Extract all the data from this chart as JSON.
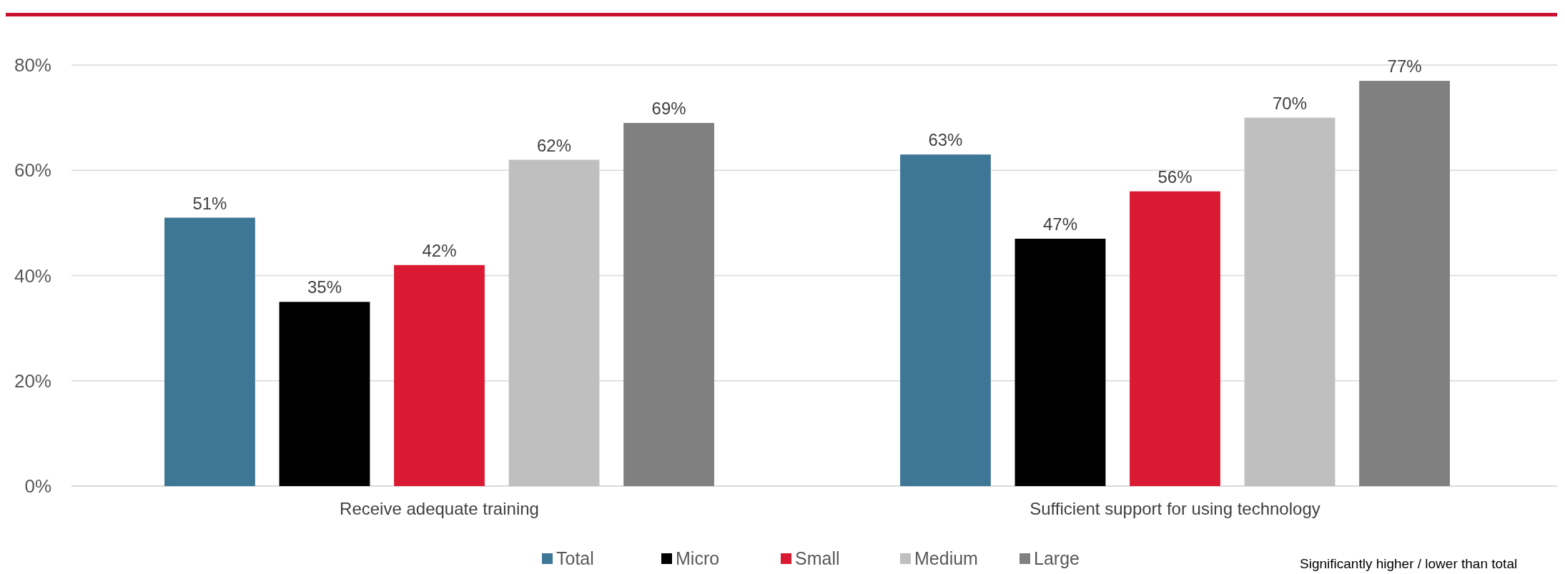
{
  "chart_data": {
    "type": "bar",
    "categories": [
      "Receive adequate training",
      "Sufficient support for using technology"
    ],
    "series": [
      {
        "name": "Total",
        "color": "#3e7696",
        "values": [
          51,
          63
        ],
        "value_labels": [
          "51%",
          "63%"
        ]
      },
      {
        "name": "Micro",
        "color": "#000000",
        "values": [
          35,
          47
        ],
        "value_labels": [
          "35%",
          "47%"
        ]
      },
      {
        "name": "Small",
        "color": "#da1a32",
        "values": [
          42,
          56
        ],
        "value_labels": [
          "42%",
          "56%"
        ]
      },
      {
        "name": "Medium",
        "color": "#bfbfbf",
        "values": [
          62,
          70
        ],
        "value_labels": [
          "62%",
          "70%"
        ]
      },
      {
        "name": "Large",
        "color": "#808080",
        "values": [
          69,
          77
        ],
        "value_labels": [
          "69%",
          "77%"
        ]
      }
    ],
    "ylim": [
      0,
      80
    ],
    "yticks": [
      {
        "value": 0,
        "label": "0%"
      },
      {
        "value": 20,
        "label": "20%"
      },
      {
        "value": 40,
        "label": "40%"
      },
      {
        "value": 60,
        "label": "60%"
      },
      {
        "value": 80,
        "label": "80%"
      }
    ],
    "grid": "y",
    "legend": "bottom",
    "annotations": [
      "Significantly higher / lower than total"
    ]
  }
}
